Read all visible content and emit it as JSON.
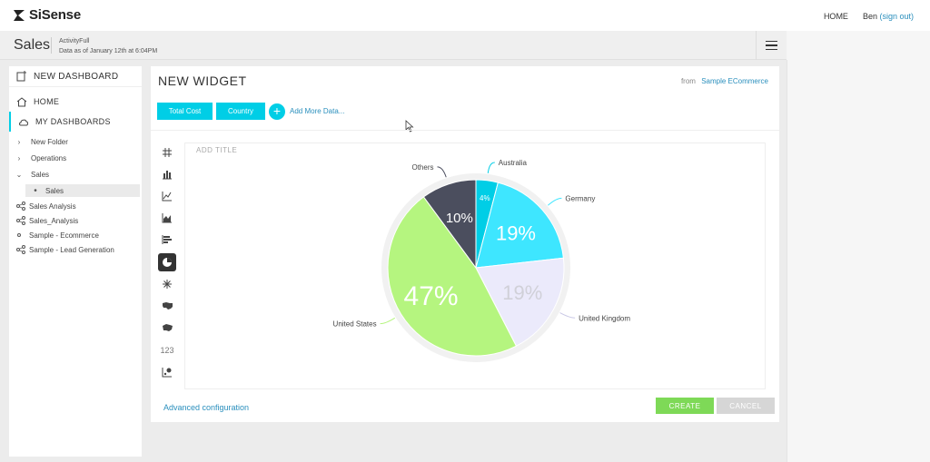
{
  "app": {
    "logo": "SiSense"
  },
  "topnav": {
    "home": "HOME",
    "user": "Ben",
    "signout": "(sign out)"
  },
  "dashboard": {
    "title": "Sales",
    "subtitle": "ActivityFull",
    "timestamp": "Data as of January 12th at 6:04PM"
  },
  "sidebar": {
    "new_dashboard": "NEW DASHBOARD",
    "home": "HOME",
    "my_dashboards": "MY DASHBOARDS",
    "tree": [
      {
        "label": "New Folder",
        "expander": "›"
      },
      {
        "label": "Operations",
        "expander": "›"
      },
      {
        "label": "Sales",
        "expander": "⌄"
      },
      {
        "label": "Sales",
        "expander": "•"
      }
    ],
    "dashboards": [
      {
        "label": "Sales Analysis",
        "icon": "share-icon"
      },
      {
        "label": "Sales_Analysis",
        "icon": "share-icon"
      },
      {
        "label": "Sample - Ecommerce",
        "icon": "dot-icon"
      },
      {
        "label": "Sample - Lead Generation",
        "icon": "share-icon"
      }
    ]
  },
  "widget": {
    "title": "NEW WIDGET",
    "from_label": "from",
    "source": "Sample ECommerce",
    "chips": [
      "Total Cost",
      "Country"
    ],
    "add_more": "Add More Data...",
    "add_title_placeholder": "ADD TITLE",
    "advanced": "Advanced configuration",
    "create": "CREATE",
    "cancel": "CANCEL",
    "chart_types": [
      "pivot-icon",
      "bar-chart-icon",
      "line-chart-icon",
      "area-chart-icon",
      "column-chart-icon",
      "pie-chart-icon",
      "scatter-burst-icon",
      "map-icon",
      "map-area-icon",
      "indicator-icon",
      "scatter-icon"
    ],
    "indicator_label": "123"
  },
  "chart_data": {
    "type": "pie",
    "categories": [
      "Australia",
      "Germany",
      "United Kingdom",
      "United States",
      "Others"
    ],
    "values": [
      4,
      19,
      19,
      47,
      10
    ],
    "labels": [
      "4%",
      "19%",
      "19%",
      "47%",
      "10%"
    ],
    "colors": [
      "#00cee6",
      "#3ee6ff",
      "#ebeafb",
      "#b5f57f",
      "#4b4e5e"
    ],
    "label_colors": [
      "#ffffff",
      "#ffffff",
      "#d0d0d8",
      "#ffffff",
      "#ffffff"
    ],
    "legend": "callouts"
  }
}
